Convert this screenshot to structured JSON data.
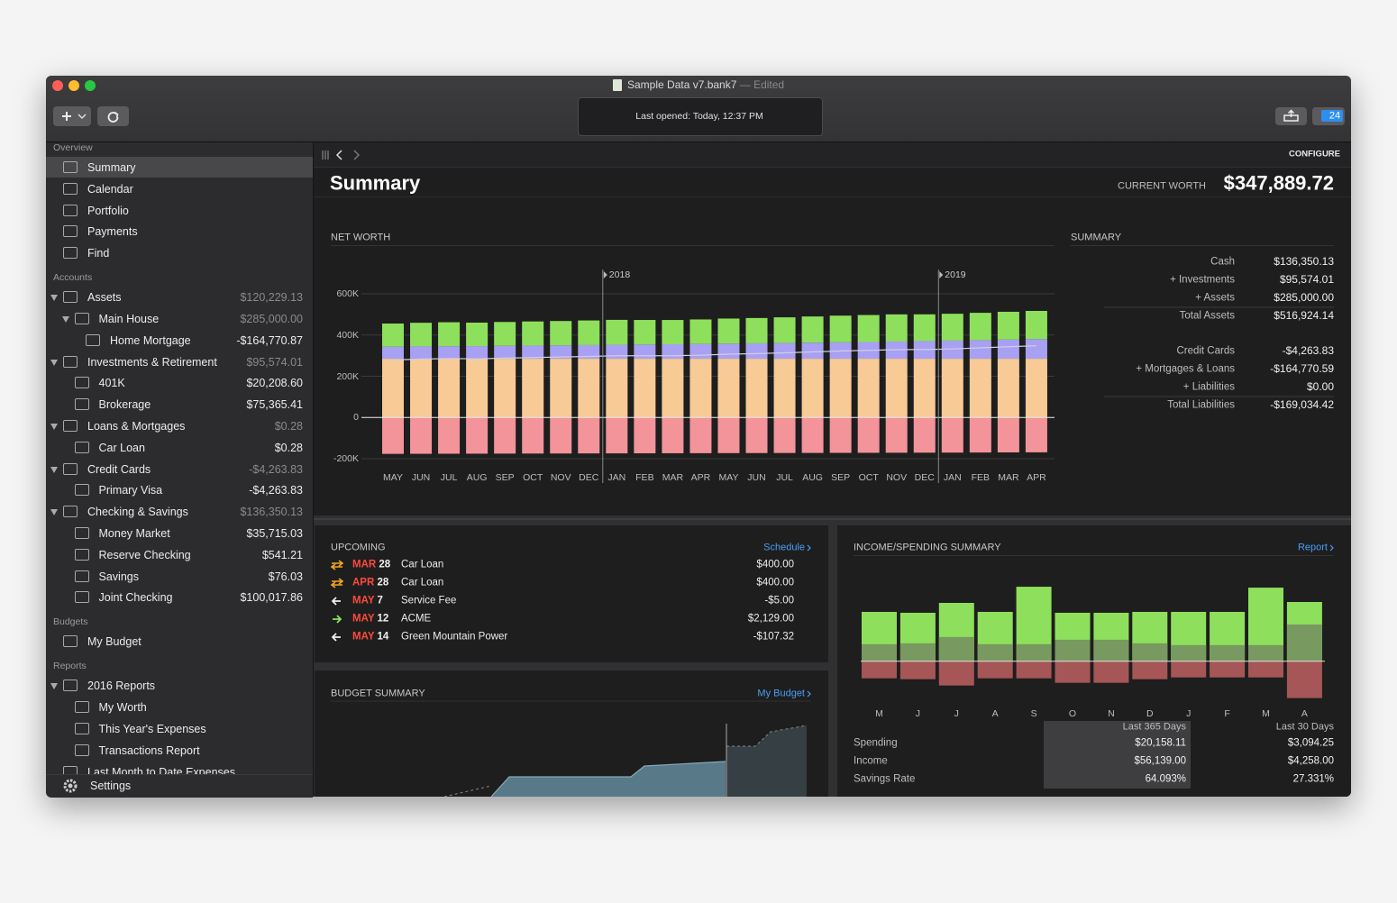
{
  "window": {
    "title": "Sample Data v7.bank7",
    "status": "— Edited",
    "last_opened": "Last opened: Today, 12:37 PM",
    "badge": "24"
  },
  "sidebar": {
    "sections": [
      {
        "title": "Overview",
        "items": [
          {
            "label": "Summary",
            "selected": true
          },
          {
            "label": "Calendar"
          },
          {
            "label": "Portfolio"
          },
          {
            "label": "Payments"
          },
          {
            "label": "Find"
          }
        ]
      },
      {
        "title": "Accounts",
        "items": [
          {
            "label": "Assets",
            "amount": "$120,229.13",
            "children": [
              {
                "label": "Main House",
                "amount": "$285,000.00",
                "children": [
                  {
                    "label": "Home Mortgage",
                    "amount": "-$164,770.87"
                  }
                ]
              }
            ]
          },
          {
            "label": "Investments & Retirement",
            "amount": "$95,574.01",
            "children": [
              {
                "label": "401K",
                "amount": "$20,208.60"
              },
              {
                "label": "Brokerage",
                "amount": "$75,365.41"
              }
            ]
          },
          {
            "label": "Loans & Mortgages",
            "amount": "$0.28",
            "children": [
              {
                "label": "Car Loan",
                "amount": "$0.28"
              }
            ]
          },
          {
            "label": "Credit Cards",
            "amount": "-$4,263.83",
            "children": [
              {
                "label": "Primary Visa",
                "amount": "-$4,263.83"
              }
            ]
          },
          {
            "label": "Checking & Savings",
            "amount": "$136,350.13",
            "children": [
              {
                "label": "Money Market",
                "amount": "$35,715.03"
              },
              {
                "label": "Reserve Checking",
                "amount": "$541.21"
              },
              {
                "label": "Savings",
                "amount": "$76.03"
              },
              {
                "label": "Joint Checking",
                "amount": "$100,017.86"
              }
            ]
          }
        ]
      },
      {
        "title": "Budgets",
        "items": [
          {
            "label": "My Budget"
          }
        ]
      },
      {
        "title": "Reports",
        "items": [
          {
            "label": "2016 Reports",
            "children": [
              {
                "label": "My Worth"
              },
              {
                "label": "This Year's Expenses"
              },
              {
                "label": "Transactions Report"
              }
            ]
          },
          {
            "label": "Last Month to Date Expenses"
          }
        ]
      }
    ],
    "settings": "Settings"
  },
  "toolbar": {
    "configure": "CONFIGURE"
  },
  "header": {
    "title": "Summary",
    "worth_label": "CURRENT WORTH",
    "worth": "$347,889.72"
  },
  "chart_data": [
    {
      "type": "bar",
      "stacked": true,
      "title": "NET WORTH",
      "grid": true,
      "categories": [
        "MAY",
        "JUN",
        "JUL",
        "AUG",
        "SEP",
        "OCT",
        "NOV",
        "DEC",
        "JAN",
        "FEB",
        "MAR",
        "APR",
        "MAY",
        "JUN",
        "JUL",
        "AUG",
        "SEP",
        "OCT",
        "NOV",
        "DEC",
        "JAN",
        "FEB",
        "MAR",
        "APR"
      ],
      "series": [
        {
          "color": "#f8ca95",
          "values": [
            285000,
            285000,
            285000,
            285000,
            285000,
            285000,
            285000,
            285000,
            285000,
            285000,
            285000,
            285000,
            285000,
            285000,
            285000,
            285000,
            285000,
            285000,
            285000,
            285000,
            285000,
            285000,
            285000,
            285000
          ]
        },
        {
          "color": "#a8a0f2",
          "values": [
            58300,
            59600,
            60800,
            61200,
            62500,
            63900,
            64700,
            66100,
            67800,
            68900,
            70200,
            71600,
            73400,
            74800,
            76300,
            78100,
            79600,
            81200,
            83500,
            85700,
            87900,
            90200,
            92800,
            95574
          ]
        },
        {
          "color": "#8ee05c",
          "values": [
            112400,
            114800,
            116200,
            113900,
            115700,
            116900,
            118300,
            119600,
            120800,
            119200,
            117800,
            118900,
            121500,
            122700,
            124600,
            126900,
            129400,
            130800,
            131700,
            129600,
            130200,
            132500,
            134900,
            136350
          ]
        },
        {
          "color": "#f3939a",
          "values": [
            -176500,
            -176200,
            -175900,
            -175600,
            -175300,
            -175000,
            -174700,
            -174400,
            -174100,
            -173800,
            -173500,
            -173200,
            -172900,
            -172600,
            -172300,
            -172000,
            -171700,
            -171400,
            -171100,
            -170800,
            -170500,
            -170000,
            -169500,
            -169034
          ]
        },
        {
          "type": "line",
          "color": "#cfcde8",
          "values": [
            279200,
            283200,
            286100,
            284500,
            287900,
            290800,
            293300,
            296300,
            299500,
            299300,
            299500,
            302300,
            307000,
            309900,
            313600,
            318000,
            322300,
            325600,
            329100,
            329500,
            332600,
            337700,
            343200,
            347890
          ]
        }
      ],
      "ylim": [
        -200000,
        600000
      ],
      "yticks": [
        {
          "value": 600000,
          "label": "600K"
        },
        {
          "value": 400000,
          "label": "400K"
        },
        {
          "value": 200000,
          "label": "200K"
        },
        0,
        {
          "value": -200000,
          "label": "-200K"
        }
      ],
      "annotations": [
        {
          "label": "2018",
          "category": 8
        },
        {
          "label": "2019",
          "category": 20
        }
      ]
    },
    {
      "type": "bar",
      "title": "INCOME/SPENDING SUMMARY",
      "link": "Report",
      "categories": [
        "M",
        "J",
        "J",
        "A",
        "S",
        "O",
        "N",
        "D",
        "J",
        "F",
        "M",
        "A"
      ],
      "series": [
        {
          "color": "#8ee05c",
          "values": [
            4675,
            4590,
            5525,
            4675,
            7055,
            4590,
            4590,
            4675,
            4675,
            4675,
            6970,
            5610
          ]
        },
        {
          "color": "#a65656",
          "overlay_color": "#78995f",
          "values": [
            -1615,
            -1700,
            -2295,
            -1615,
            -1615,
            -2040,
            -2040,
            -1700,
            -1530,
            -1530,
            -1530,
            -3485
          ]
        }
      ],
      "ylim": [
        -4800,
        8000
      ]
    }
  ],
  "summary": {
    "title": "SUMMARY",
    "groups": [
      [
        [
          "Cash",
          "$136,350.13"
        ],
        [
          "+ Investments",
          "$95,574.01"
        ],
        [
          "+ Assets",
          "$285,000.00"
        ],
        [
          "Total Assets",
          "$516,924.14"
        ]
      ],
      [
        [
          "Credit Cards",
          "-$4,263.83"
        ],
        [
          "+ Mortgages & Loans",
          "-$164,770.59"
        ],
        [
          "+ Liabilities",
          "$0.00"
        ],
        [
          "Total Liabilities",
          "-$169,034.42"
        ]
      ]
    ]
  },
  "upcoming": {
    "title": "UPCOMING",
    "link": "Schedule",
    "rows": [
      {
        "kind": "transfer",
        "month": "MAR",
        "day": "28",
        "payee": "Car Loan",
        "amount": "$400.00"
      },
      {
        "kind": "transfer",
        "month": "APR",
        "day": "28",
        "payee": "Car Loan",
        "amount": "$400.00"
      },
      {
        "kind": "payment",
        "month": "MAY",
        "day": "7",
        "payee": "Service Fee",
        "amount": "-$5.00"
      },
      {
        "kind": "deposit",
        "month": "MAY",
        "day": "12",
        "payee": "ACME",
        "amount": "$2,129.00"
      },
      {
        "kind": "payment",
        "month": "MAY",
        "day": "14",
        "payee": "Green Mountain Power",
        "amount": "-$107.32"
      }
    ]
  },
  "budget": {
    "title": "BUDGET SUMMARY",
    "link": "My Budget"
  },
  "income_table": {
    "columns": [
      "Last 365 Days",
      "Last 30 Days"
    ],
    "rows": [
      [
        "Spending",
        "$20,158.11",
        "$3,094.25"
      ],
      [
        "Income",
        "$56,139.00",
        "$4,258.00"
      ],
      [
        "Savings Rate",
        "64.093%",
        "27.331%"
      ]
    ]
  }
}
